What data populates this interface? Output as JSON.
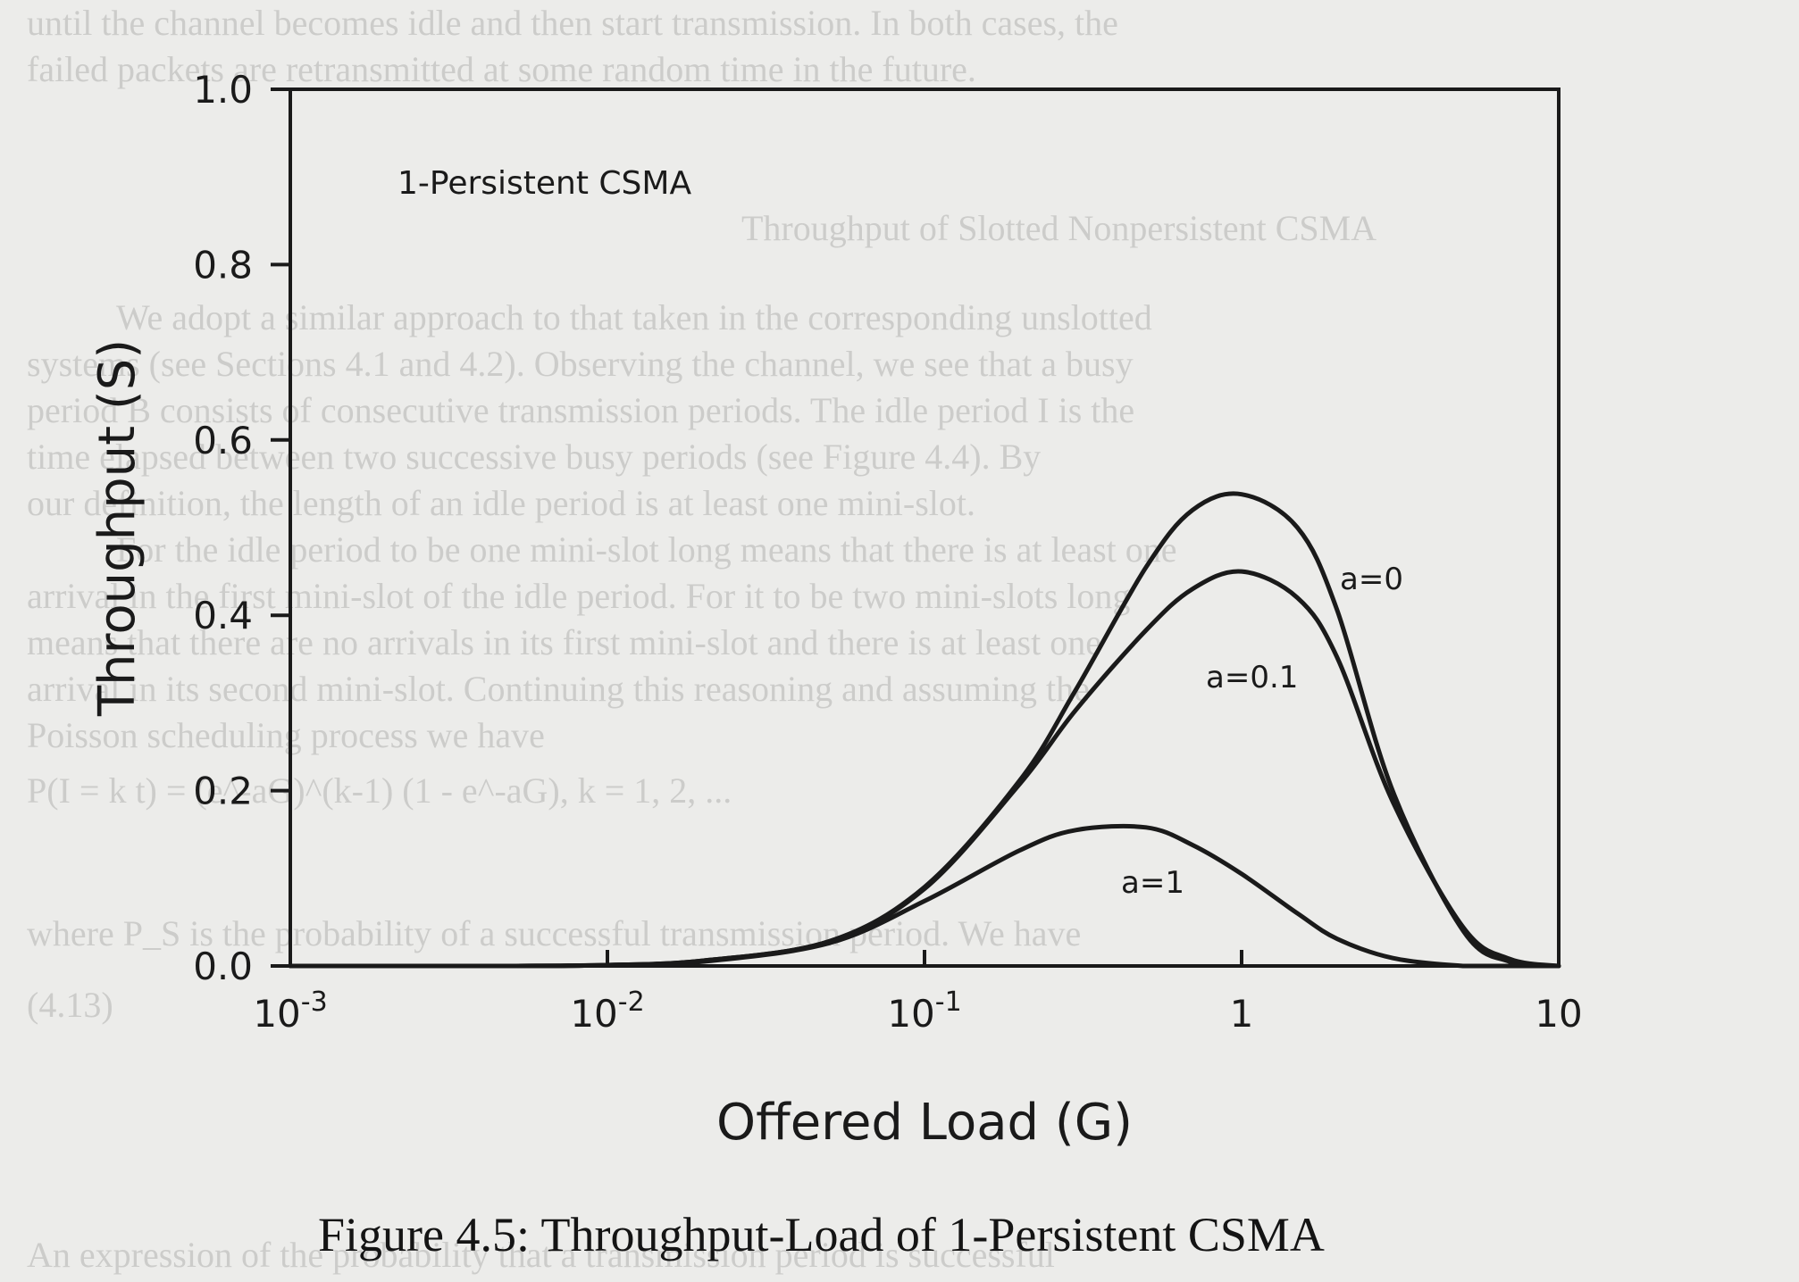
{
  "caption": "Figure 4.5: Throughput-Load of 1-Persistent CSMA",
  "background_text": [
    "until the channel becomes idle and then start transmission. In both cases, the",
    "failed packets are retransmitted at some random time in the future.",
    "Throughput of Slotted Nonpersistent CSMA",
    "We adopt a similar approach to that taken in the corresponding unslotted",
    "systems (see Sections 4.1 and 4.2). Observing the channel, we see that a busy",
    "period B consists of consecutive transmission periods. The idle period I is the",
    "time elapsed between two successive busy periods (see Figure 4.4). By",
    "our definition, the length of an idle period is at least one mini-slot.",
    "For the idle period to be one mini-slot long means that there is at least one",
    "arrival in the first mini-slot of the idle period. For it to be two mini-slots long",
    "means that there are no arrivals in its first mini-slot and there is at least one",
    "arrival in its second mini-slot. Continuing this reasoning and assuming the",
    "Poisson scheduling process we have",
    "P(I = k t) = (e^-aG)^(k-1) (1 - e^-aG), k = 1, 2, ...",
    "where P_S is the probability of a successful transmission period. We have",
    "(4.13)",
    "An expression of the probability that a transmission period is successful"
  ],
  "chart_data": {
    "type": "line",
    "title": "1-Persistent CSMA",
    "xlabel": "Offered Load (G)",
    "ylabel": "Throughput (S)",
    "xscale": "log",
    "xlim": [
      0.001,
      10
    ],
    "ylim": [
      0.0,
      1.0
    ],
    "x_ticks": [
      0.001,
      0.01,
      0.1,
      1,
      10
    ],
    "x_tick_labels": [
      {
        "base": "10",
        "exp": "-3"
      },
      {
        "base": "10",
        "exp": "-2"
      },
      {
        "base": "10",
        "exp": "-1"
      },
      {
        "base": "1",
        "exp": ""
      },
      {
        "base": "10",
        "exp": ""
      }
    ],
    "y_ticks": [
      0.0,
      0.2,
      0.4,
      0.6,
      0.8,
      1.0
    ],
    "y_tick_labels": [
      "0.0",
      "0.2",
      "0.4",
      "0.6",
      "0.8",
      "1.0"
    ],
    "grid": false,
    "line_color": "#1a1a1a",
    "x": [
      0.001,
      0.002,
      0.005,
      0.01,
      0.02,
      0.05,
      0.1,
      0.2,
      0.3,
      0.5,
      0.7,
      1.0,
      1.5,
      2.0,
      3.0,
      5.0,
      7.0,
      10.0
    ],
    "series": [
      {
        "name": "a=0",
        "values": [
          0.0,
          0.0,
          0.0,
          0.001,
          0.006,
          0.028,
          0.09,
          0.212,
          0.315,
          0.455,
          0.52,
          0.538,
          0.5,
          0.406,
          0.199,
          0.04,
          0.005,
          0.0
        ]
      },
      {
        "name": "a=0.1",
        "values": [
          0.0,
          0.0,
          0.0,
          0.001,
          0.006,
          0.028,
          0.088,
          0.208,
          0.292,
          0.383,
          0.43,
          0.45,
          0.42,
          0.352,
          0.187,
          0.044,
          0.008,
          0.0
        ]
      },
      {
        "name": "a=1",
        "values": [
          0.0,
          0.0,
          0.0,
          0.001,
          0.005,
          0.026,
          0.074,
          0.132,
          0.155,
          0.158,
          0.138,
          0.105,
          0.06,
          0.031,
          0.009,
          0.0,
          0.0,
          0.0
        ]
      }
    ]
  }
}
